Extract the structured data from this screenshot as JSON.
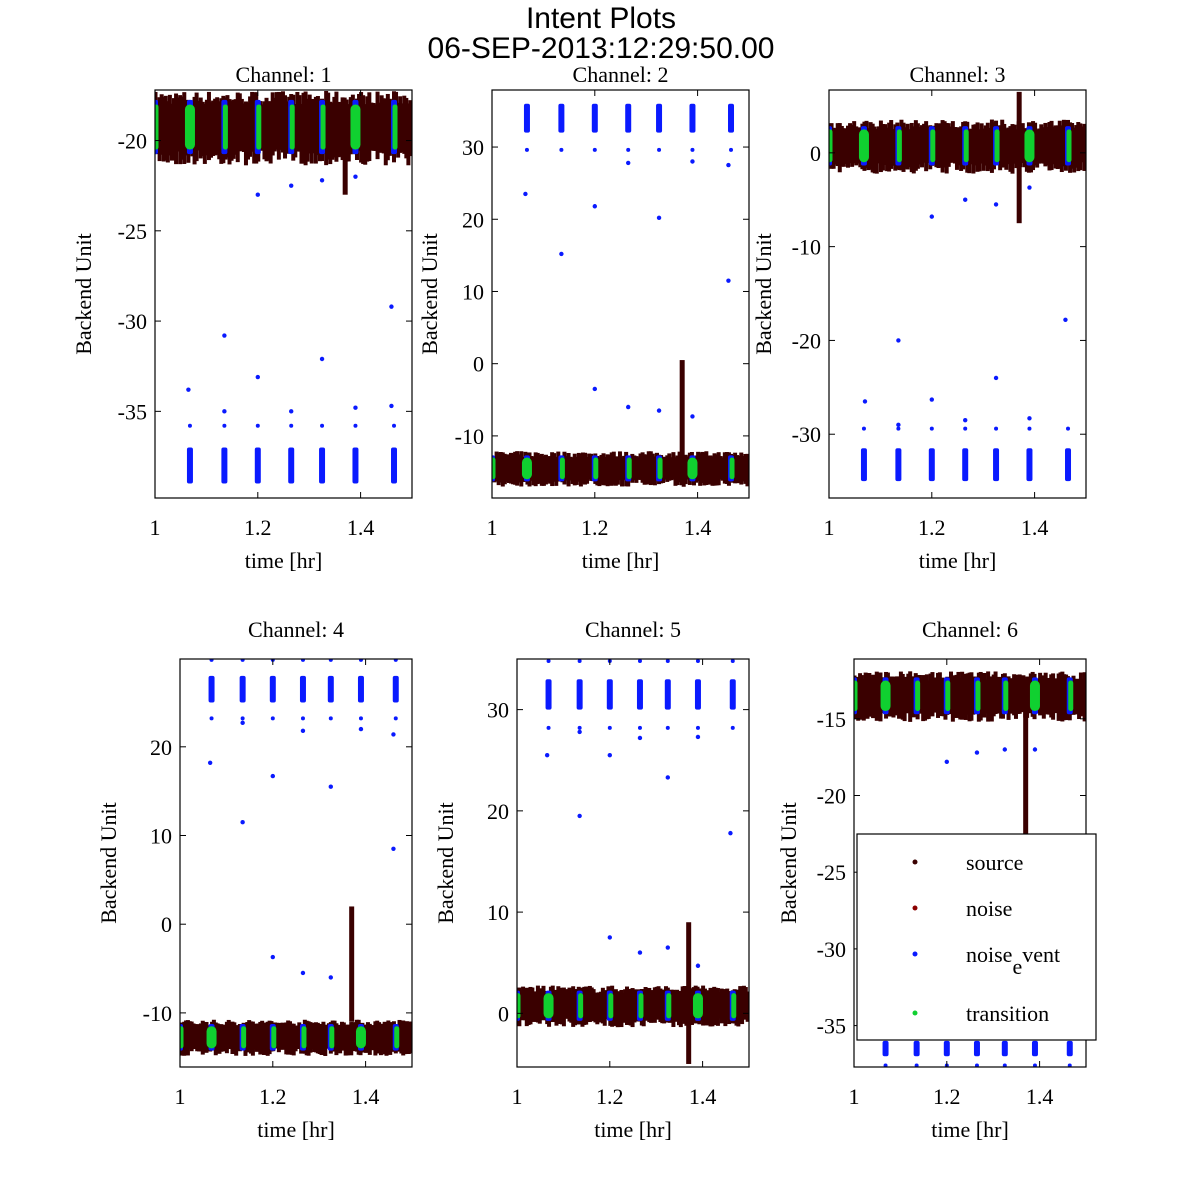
{
  "chart_data": {
    "type": "scatter",
    "title": "Intent Plots",
    "subtitle": "06-SEP-2013:12:29:50.00",
    "xlabel": "time [hr]",
    "ylabel": "Backend Unit",
    "xlim": [
      1,
      1.5
    ],
    "xticks": [
      1,
      1.2,
      1.4
    ],
    "grid": false,
    "legend": {
      "placement": "inside channel 6, lower-right",
      "entries": [
        {
          "name": "source",
          "label": "source",
          "color": "#3a0000"
        },
        {
          "name": "noise",
          "label": "noise",
          "color": "#8b0000"
        },
        {
          "name": "noise_event",
          "label": "noise",
          "label_sub": "e",
          "label_rest": "vent",
          "color": "#0a1aff"
        },
        {
          "name": "transition",
          "label": "transition",
          "color": "#10d030"
        }
      ]
    },
    "event_times": [
      1.0,
      1.068,
      1.135,
      1.2,
      1.265,
      1.325,
      1.39,
      1.465
    ],
    "spike_time": 1.37,
    "channels": [
      {
        "title": "Channel: 1",
        "ylim": [
          -39.8,
          -17.2
        ],
        "yticks": [
          -20,
          -25,
          -30,
          -35
        ],
        "source_band": [
          -20.5,
          -18
        ],
        "event_cluster": [
          -39,
          -37
        ],
        "transition_times": [
          1.0,
          1.068,
          1.135,
          1.2,
          1.265,
          1.325,
          1.39,
          1.465
        ],
        "spike": [
          -23,
          -20
        ],
        "outliers": [
          [
            1.065,
            -33.8
          ],
          [
            1.135,
            -30.8
          ],
          [
            1.135,
            -35
          ],
          [
            1.2,
            -33.1
          ],
          [
            1.2,
            -23
          ],
          [
            1.265,
            -22.5
          ],
          [
            1.265,
            -35
          ],
          [
            1.325,
            -22.2
          ],
          [
            1.325,
            -32.1
          ],
          [
            1.39,
            -22
          ],
          [
            1.39,
            -34.8
          ],
          [
            1.46,
            -34.7
          ],
          [
            1.46,
            -29.2
          ]
        ]
      },
      {
        "title": "Channel: 2",
        "ylim": [
          -18.6,
          37.9
        ],
        "yticks": [
          30,
          20,
          10,
          0,
          -10
        ],
        "source_band": [
          -16,
          -13
        ],
        "event_cluster": [
          32,
          36
        ],
        "transition_times": [
          1.0,
          1.068,
          1.135,
          1.2,
          1.265,
          1.325,
          1.39,
          1.465
        ],
        "spike": [
          -13,
          0.5
        ],
        "outliers": [
          [
            1.065,
            23.5
          ],
          [
            1.135,
            15.2
          ],
          [
            1.2,
            21.8
          ],
          [
            1.2,
            -3.5
          ],
          [
            1.265,
            27.8
          ],
          [
            1.265,
            -6
          ],
          [
            1.325,
            20.2
          ],
          [
            1.325,
            -6.5
          ],
          [
            1.39,
            28
          ],
          [
            1.39,
            -7.3
          ],
          [
            1.46,
            27.5
          ],
          [
            1.46,
            11.5
          ]
        ]
      },
      {
        "title": "Channel: 3",
        "ylim": [
          -36.8,
          6.7
        ],
        "yticks": [
          0,
          -10,
          -20,
          -30
        ],
        "source_band": [
          -1,
          2.5
        ],
        "event_cluster": [
          -35,
          -31.5
        ],
        "transition_times": [
          1.0,
          1.068,
          1.135,
          1.2,
          1.265,
          1.325,
          1.39,
          1.465
        ],
        "spike": [
          -7.5,
          6.5
        ],
        "outliers": [
          [
            1.07,
            -26.5
          ],
          [
            1.135,
            -20
          ],
          [
            1.135,
            -29
          ],
          [
            1.2,
            -6.8
          ],
          [
            1.2,
            -26.3
          ],
          [
            1.265,
            -5
          ],
          [
            1.265,
            -28.5
          ],
          [
            1.325,
            -5.5
          ],
          [
            1.325,
            -24
          ],
          [
            1.39,
            -3.7
          ],
          [
            1.39,
            -28.3
          ],
          [
            1.46,
            -17.8
          ]
        ]
      },
      {
        "title": "Channel: 4",
        "ylim": [
          -16.1,
          29.9
        ],
        "yticks": [
          20,
          10,
          0,
          -10
        ],
        "source_band": [
          -14,
          -11.5
        ],
        "event_cluster": [
          25,
          28
        ],
        "transition_times": [
          1.0,
          1.068,
          1.135,
          1.2,
          1.265,
          1.325,
          1.39,
          1.465
        ],
        "spike": [
          -11,
          2
        ],
        "outliers": [
          [
            1.065,
            18.2
          ],
          [
            1.135,
            11.5
          ],
          [
            1.135,
            22.7
          ],
          [
            1.2,
            -3.7
          ],
          [
            1.2,
            16.7
          ],
          [
            1.265,
            -5.5
          ],
          [
            1.265,
            21.8
          ],
          [
            1.325,
            -6
          ],
          [
            1.325,
            15.5
          ],
          [
            1.39,
            22
          ],
          [
            1.46,
            8.5
          ],
          [
            1.46,
            21.4
          ]
        ]
      },
      {
        "title": "Channel: 5",
        "ylim": [
          -5.3,
          35
        ],
        "yticks": [
          30,
          20,
          10,
          0
        ],
        "source_band": [
          -0.5,
          2
        ],
        "event_cluster": [
          30,
          33
        ],
        "transition_times": [
          1.0,
          1.068,
          1.135,
          1.2,
          1.265,
          1.325,
          1.39,
          1.465
        ],
        "spike": [
          -5,
          9
        ],
        "outliers": [
          [
            1.065,
            25.5
          ],
          [
            1.135,
            19.5
          ],
          [
            1.135,
            27.8
          ],
          [
            1.2,
            7.5
          ],
          [
            1.2,
            25.5
          ],
          [
            1.265,
            6
          ],
          [
            1.265,
            27.2
          ],
          [
            1.325,
            6.5
          ],
          [
            1.325,
            23.3
          ],
          [
            1.39,
            4.7
          ],
          [
            1.39,
            27.3
          ],
          [
            1.46,
            17.8
          ]
        ]
      },
      {
        "title": "Channel: 6",
        "ylim": [
          -37.7,
          -11.1
        ],
        "yticks": [
          -15,
          -20,
          -25,
          -30,
          -35
        ],
        "source_band": [
          -14.5,
          -12.5
        ],
        "event_cluster": [
          -37,
          -36
        ],
        "transition_times": [
          1.0,
          1.068,
          1.135,
          1.2,
          1.265,
          1.325,
          1.39,
          1.465
        ],
        "spike": [
          -25,
          -13
        ],
        "outliers": [
          [
            1.2,
            -17.8
          ],
          [
            1.265,
            -17.2
          ],
          [
            1.325,
            -17
          ],
          [
            1.39,
            -17
          ]
        ]
      }
    ]
  }
}
